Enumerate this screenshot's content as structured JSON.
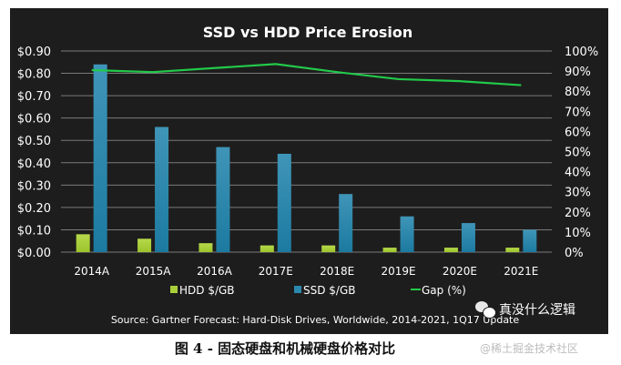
{
  "chart_data": {
    "type": "bar",
    "title": "SSD vs HDD Price Erosion",
    "categories": [
      "2014A",
      "2015A",
      "2016A",
      "2017E",
      "2018E",
      "2019E",
      "2020E",
      "2021E"
    ],
    "series": [
      {
        "name": "HDD $/GB",
        "type": "bar",
        "axis": "left",
        "color": "#a9cf38",
        "values": [
          0.08,
          0.06,
          0.04,
          0.03,
          0.03,
          0.02,
          0.02,
          0.02
        ]
      },
      {
        "name": "SSD $/GB",
        "type": "bar",
        "axis": "left",
        "color": "#2b89ad",
        "values": [
          0.84,
          0.56,
          0.47,
          0.44,
          0.26,
          0.16,
          0.13,
          0.1
        ]
      },
      {
        "name": "Gap (%)",
        "type": "line",
        "axis": "right",
        "color": "#22c94a",
        "values": [
          90.5,
          89.5,
          91.5,
          93.5,
          89.5,
          86,
          85,
          83
        ]
      }
    ],
    "y_left": {
      "label": "",
      "range": [
        0,
        0.9
      ],
      "ticks": [
        "$0.00",
        "$0.10",
        "$0.20",
        "$0.30",
        "$0.40",
        "$0.50",
        "$0.60",
        "$0.70",
        "$0.80",
        "$0.90"
      ]
    },
    "y_right": {
      "label": "",
      "range": [
        0,
        100
      ],
      "ticks": [
        "0%",
        "10%",
        "20%",
        "30%",
        "40%",
        "50%",
        "60%",
        "70%",
        "80%",
        "90%",
        "100%"
      ]
    },
    "xlabel": "",
    "grid": true,
    "legend_position": "bottom",
    "source": "Source: Gartner Forecast: Hard-Disk Drives, Worldwide, 2014-2021, 1Q17 Update"
  },
  "caption": "图 4 - 固态硬盘和机械硬盘价格对比",
  "watermarks": {
    "wechat_account": "真没什么逻辑",
    "site": "@稀土掘金技术社区"
  }
}
